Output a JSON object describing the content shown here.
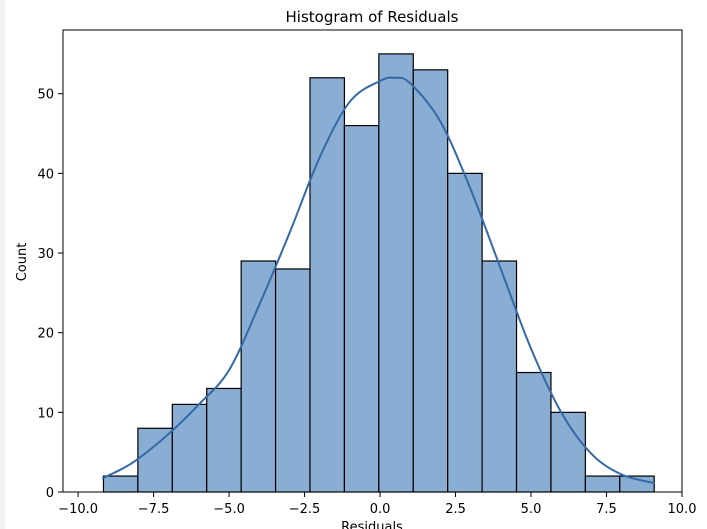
{
  "chart_data": {
    "type": "bar",
    "title": "Histogram of Residuals",
    "xlabel": "Residuals",
    "ylabel": "Count",
    "xlim": [
      -10.5,
      10.0
    ],
    "ylim": [
      0,
      58
    ],
    "grid": false,
    "bins": [
      {
        "x0": -9.16,
        "x1": -8.02,
        "count": 2
      },
      {
        "x0": -8.02,
        "x1": -6.88,
        "count": 8
      },
      {
        "x0": -6.88,
        "x1": -5.74,
        "count": 11
      },
      {
        "x0": -5.74,
        "x1": -4.6,
        "count": 13
      },
      {
        "x0": -4.6,
        "x1": -3.46,
        "count": 29
      },
      {
        "x0": -3.46,
        "x1": -2.32,
        "count": 28
      },
      {
        "x0": -2.32,
        "x1": -1.18,
        "count": 52
      },
      {
        "x0": -1.18,
        "x1": -0.04,
        "count": 46
      },
      {
        "x0": -0.04,
        "x1": 1.1,
        "count": 55
      },
      {
        "x0": 1.1,
        "x1": 2.24,
        "count": 53
      },
      {
        "x0": 2.24,
        "x1": 3.38,
        "count": 40
      },
      {
        "x0": 3.38,
        "x1": 4.52,
        "count": 29
      },
      {
        "x0": 4.52,
        "x1": 5.66,
        "count": 15
      },
      {
        "x0": 5.66,
        "x1": 6.8,
        "count": 10
      },
      {
        "x0": 6.8,
        "x1": 7.94,
        "count": 2
      },
      {
        "x0": 7.94,
        "x1": 9.08,
        "count": 2
      }
    ],
    "kde": {
      "x": [
        -9.2,
        -8.5,
        -8.0,
        -7.0,
        -6.0,
        -5.0,
        -4.0,
        -3.0,
        -2.0,
        -1.0,
        0.0,
        0.5,
        1.0,
        2.0,
        3.0,
        4.0,
        5.0,
        6.0,
        7.0,
        8.0,
        9.1
      ],
      "y": [
        1.7,
        3.0,
        4.2,
        7.3,
        11.0,
        15.3,
        23.5,
        32.5,
        42.0,
        49.0,
        51.6,
        52.0,
        51.3,
        46.5,
        38.0,
        28.0,
        18.0,
        10.0,
        4.8,
        2.2,
        1.1
      ]
    },
    "xticks": [
      -10.0,
      -7.5,
      -5.0,
      -2.5,
      0.0,
      2.5,
      5.0,
      7.5,
      10.0
    ],
    "xtick_labels": [
      "−10.0",
      "−7.5",
      "−5.0",
      "−2.5",
      "0.0",
      "2.5",
      "5.0",
      "7.5",
      "10.0"
    ],
    "yticks": [
      0,
      10,
      20,
      30,
      40,
      50
    ],
    "ytick_labels": [
      "0",
      "10",
      "20",
      "30",
      "40",
      "50"
    ],
    "colors": {
      "bar_fill": "#8aaed3",
      "bar_edge": "#000000",
      "kde_line": "#3469a8"
    }
  }
}
